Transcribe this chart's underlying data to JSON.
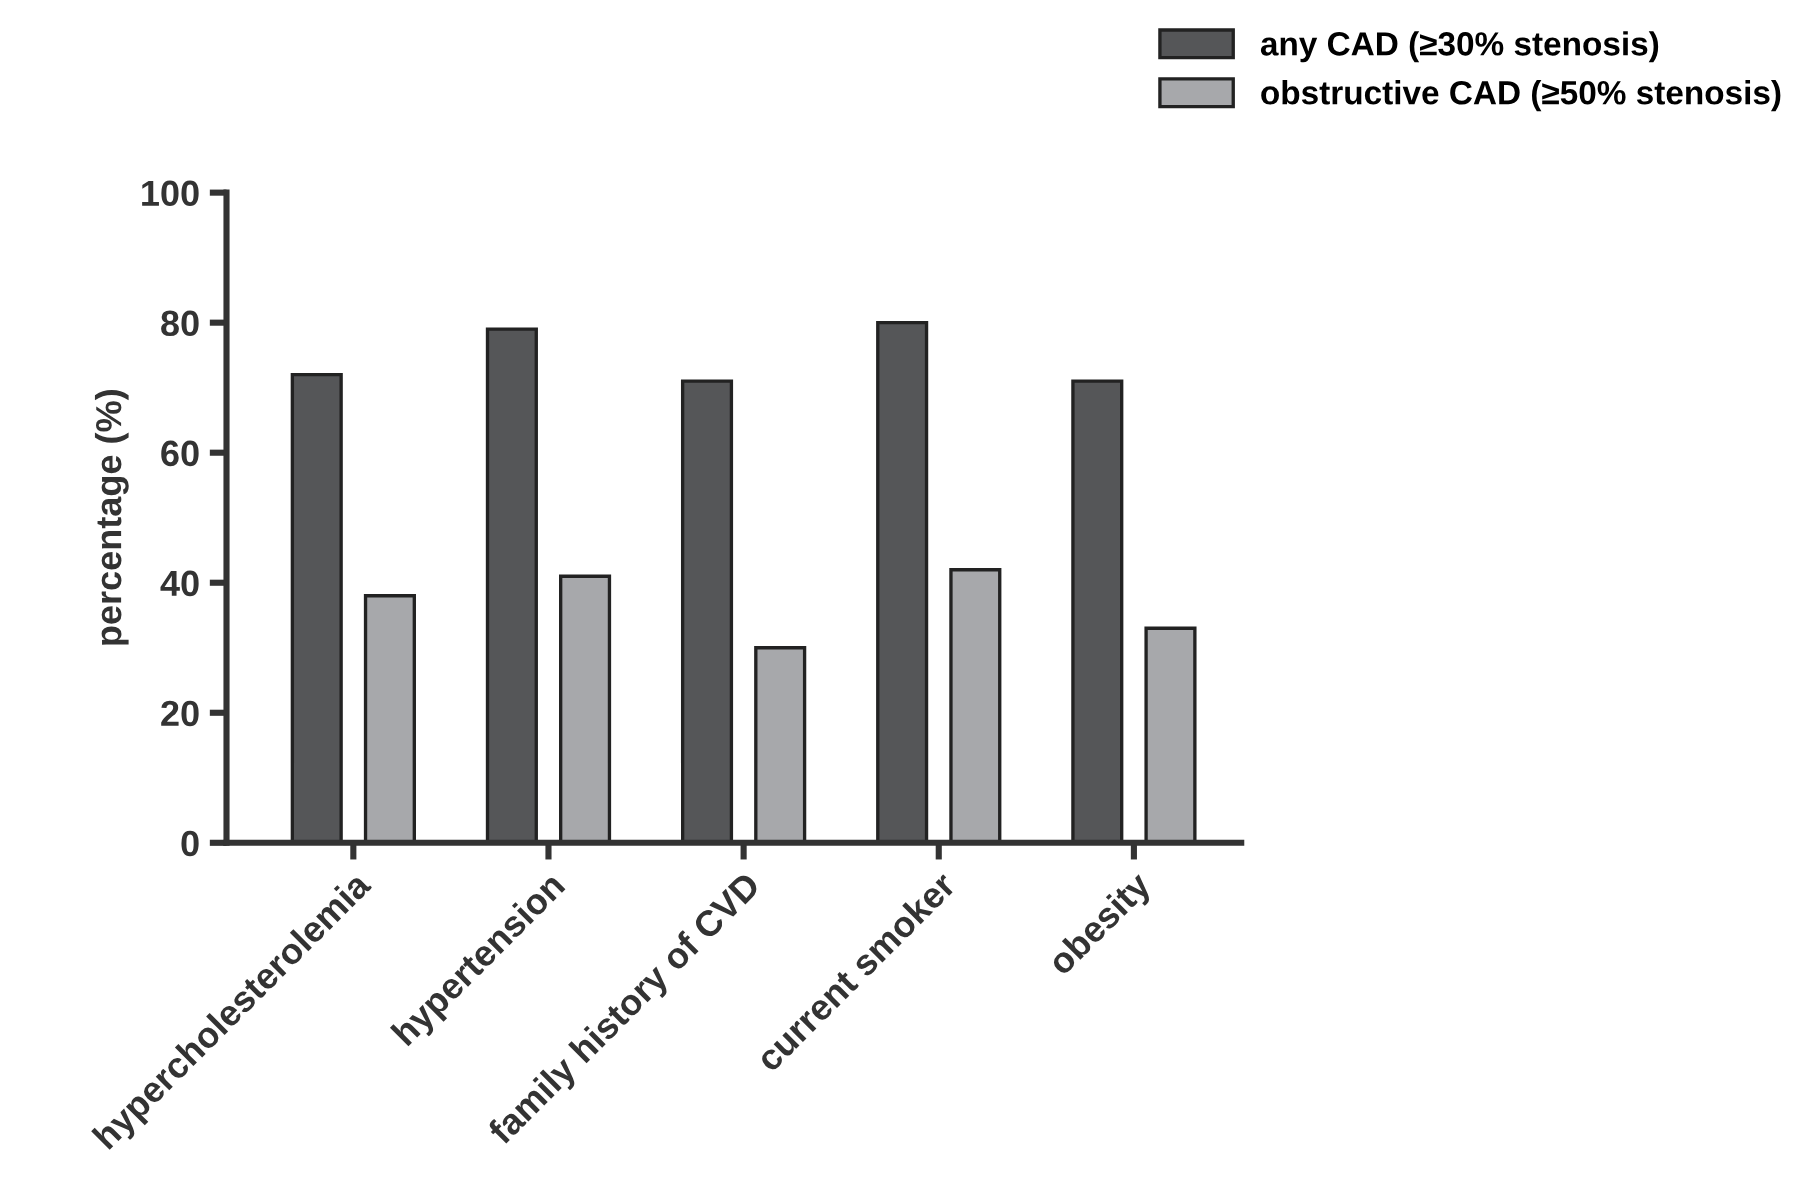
{
  "chart_data": {
    "type": "bar",
    "ylabel": "percentage (%)",
    "categories": [
      "hypercholesterolemia",
      "hypertension",
      "family history of CVD",
      "current smoker",
      "obesity"
    ],
    "series": [
      {
        "name": "any CAD (≥30% stenosis)",
        "color": "#555658",
        "values": [
          72,
          79,
          71,
          80,
          71
        ]
      },
      {
        "name": "obstructive CAD (≥50% stenosis)",
        "color": "#a7a8ab",
        "values": [
          38,
          41,
          30,
          42,
          33
        ]
      }
    ],
    "ylim": [
      0,
      100
    ],
    "yticks": [
      0,
      20,
      40,
      60,
      80,
      100
    ],
    "grid": false,
    "legend": "top right"
  }
}
